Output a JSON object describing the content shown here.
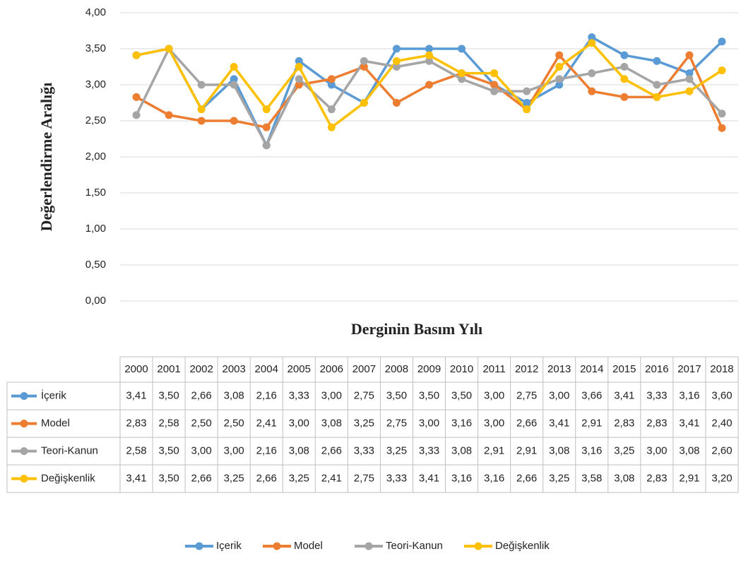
{
  "chart_data": {
    "type": "line",
    "y_axis_label": "Değerlendirme Aralığı",
    "x_axis_label": "Derginin Basım Yılı",
    "categories": [
      "2000",
      "2001",
      "2002",
      "2003",
      "2004",
      "2005",
      "2006",
      "2007",
      "2008",
      "2009",
      "2010",
      "2011",
      "2012",
      "2013",
      "2014",
      "2015",
      "2016",
      "2017",
      "2018"
    ],
    "ylim": [
      0,
      4
    ],
    "yticks": [
      {
        "value": 0,
        "label": "0,00"
      },
      {
        "value": 0.5,
        "label": "0,50"
      },
      {
        "value": 1,
        "label": "1,00"
      },
      {
        "value": 1.5,
        "label": "1,50"
      },
      {
        "value": 2,
        "label": "2,00"
      },
      {
        "value": 2.5,
        "label": "2,50"
      },
      {
        "value": 3,
        "label": "3,00"
      },
      {
        "value": 3.5,
        "label": "3,50"
      },
      {
        "value": 4,
        "label": "4,00"
      }
    ],
    "grid": true,
    "legend_position": "bottom",
    "legend_labels": [
      "Içerik",
      "Model",
      "Teori-Kanun",
      "Değişkenlik"
    ],
    "series": [
      {
        "name": "İçerik",
        "color": "#5b9bd5",
        "values": [
          3.41,
          3.5,
          2.66,
          3.08,
          2.16,
          3.33,
          3.0,
          2.75,
          3.5,
          3.5,
          3.5,
          3.0,
          2.75,
          3.0,
          3.66,
          3.41,
          3.33,
          3.16,
          3.6
        ],
        "value_labels": [
          "3,41",
          "3,50",
          "2,66",
          "3,08",
          "2,16",
          "3,33",
          "3,00",
          "2,75",
          "3,50",
          "3,50",
          "3,50",
          "3,00",
          "2,75",
          "3,00",
          "3,66",
          "3,41",
          "3,33",
          "3,16",
          "3,60"
        ]
      },
      {
        "name": "Model",
        "color": "#ed7d31",
        "values": [
          2.83,
          2.58,
          2.5,
          2.5,
          2.41,
          3.0,
          3.08,
          3.25,
          2.75,
          3.0,
          3.16,
          3.0,
          2.66,
          3.41,
          2.91,
          2.83,
          2.83,
          3.41,
          2.4
        ],
        "value_labels": [
          "2,83",
          "2,58",
          "2,50",
          "2,50",
          "2,41",
          "3,00",
          "3,08",
          "3,25",
          "2,75",
          "3,00",
          "3,16",
          "3,00",
          "2,66",
          "3,41",
          "2,91",
          "2,83",
          "2,83",
          "3,41",
          "2,40"
        ]
      },
      {
        "name": "Teori-Kanun",
        "color": "#a5a5a5",
        "values": [
          2.58,
          3.5,
          3.0,
          3.0,
          2.16,
          3.08,
          2.66,
          3.33,
          3.25,
          3.33,
          3.08,
          2.91,
          2.91,
          3.08,
          3.16,
          3.25,
          3.0,
          3.08,
          2.6
        ],
        "value_labels": [
          "2,58",
          "3,50",
          "3,00",
          "3,00",
          "2,16",
          "3,08",
          "2,66",
          "3,33",
          "3,25",
          "3,33",
          "3,08",
          "2,91",
          "2,91",
          "3,08",
          "3,16",
          "3,25",
          "3,00",
          "3,08",
          "2,60"
        ]
      },
      {
        "name": "Değişkenlik",
        "color": "#ffc000",
        "values": [
          3.41,
          3.5,
          2.66,
          3.25,
          2.66,
          3.25,
          2.41,
          2.75,
          3.33,
          3.41,
          3.16,
          3.16,
          2.66,
          3.25,
          3.58,
          3.08,
          2.83,
          2.91,
          3.2
        ],
        "value_labels": [
          "3,41",
          "3,50",
          "2,66",
          "3,25",
          "2,66",
          "3,25",
          "2,41",
          "2,75",
          "3,33",
          "3,41",
          "3,16",
          "3,16",
          "2,66",
          "3,25",
          "3,58",
          "3,08",
          "2,83",
          "2,91",
          "3,20"
        ]
      }
    ]
  }
}
